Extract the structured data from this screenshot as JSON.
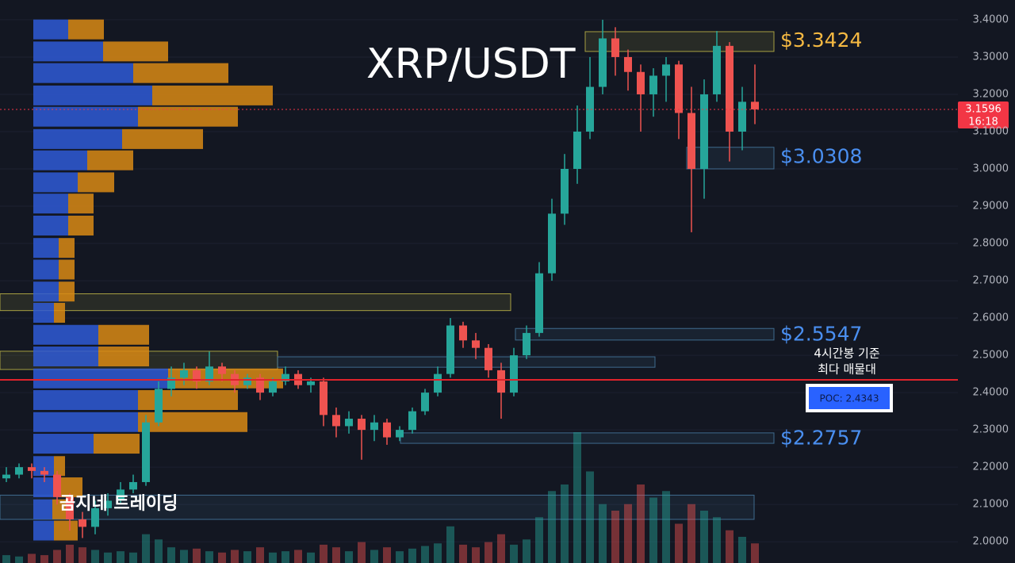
{
  "chart_data": {
    "type": "candlestick",
    "title": "XRP/USDT",
    "watermark": "곰지네 트레이딩",
    "ylim": [
      1.943,
      3.453
    ],
    "yticks": [
      {
        "value": 2.0,
        "label": "2.0000"
      },
      {
        "value": 2.1,
        "label": "2.1000"
      },
      {
        "value": 2.2,
        "label": "2.2000"
      },
      {
        "value": 2.3,
        "label": "2.3000"
      },
      {
        "value": 2.4,
        "label": "2.4000"
      },
      {
        "value": 2.5,
        "label": "2.5000"
      },
      {
        "value": 2.6,
        "label": "2.6000"
      },
      {
        "value": 2.7,
        "label": "2.7000"
      },
      {
        "value": 2.8,
        "label": "2.8000"
      },
      {
        "value": 2.9,
        "label": "2.9000"
      },
      {
        "value": 3.0,
        "label": "3.0000"
      },
      {
        "value": 3.1,
        "label": "3.1000"
      },
      {
        "value": 3.2,
        "label": "3.2000"
      },
      {
        "value": 3.3,
        "label": "3.3000"
      },
      {
        "value": 3.4,
        "label": "3.4000"
      }
    ],
    "up_color": "#26a69a",
    "down_color": "#ef5350",
    "open": [
      2.17,
      2.18,
      2.2,
      2.19,
      2.18,
      2.12,
      2.06,
      2.04,
      2.09,
      2.11,
      2.14,
      2.16,
      2.32,
      2.41,
      2.44,
      2.46,
      2.43,
      2.47,
      2.45,
      2.42,
      2.44,
      2.4,
      2.43,
      2.45,
      2.42,
      2.43,
      2.34,
      2.31,
      2.33,
      2.3,
      2.32,
      2.28,
      2.3,
      2.35,
      2.4,
      2.45,
      2.58,
      2.54,
      2.52,
      2.46,
      2.4,
      2.5,
      2.56,
      2.72,
      2.88,
      3.0,
      3.1,
      3.22,
      3.35,
      3.3,
      3.26,
      3.2,
      3.25,
      3.28,
      3.15,
      3.0,
      3.2,
      3.33,
      3.1,
      3.18
    ],
    "high": [
      2.2,
      2.21,
      2.21,
      2.2,
      2.19,
      2.13,
      2.08,
      2.11,
      2.13,
      2.16,
      2.18,
      2.34,
      2.43,
      2.47,
      2.48,
      2.47,
      2.51,
      2.48,
      2.46,
      2.45,
      2.45,
      2.44,
      2.47,
      2.46,
      2.44,
      2.44,
      2.36,
      2.35,
      2.34,
      2.34,
      2.33,
      2.31,
      2.36,
      2.41,
      2.47,
      2.6,
      2.59,
      2.56,
      2.53,
      2.48,
      2.52,
      2.58,
      2.75,
      2.92,
      3.04,
      3.17,
      3.3,
      3.4,
      3.38,
      3.32,
      3.28,
      3.27,
      3.3,
      3.29,
      3.22,
      3.24,
      3.37,
      3.34,
      3.22,
      3.28
    ],
    "low": [
      2.16,
      2.17,
      2.17,
      2.16,
      2.1,
      2.03,
      2.01,
      2.02,
      2.07,
      2.1,
      2.13,
      2.15,
      2.31,
      2.39,
      2.42,
      2.41,
      2.42,
      2.43,
      2.4,
      2.41,
      2.38,
      2.39,
      2.42,
      2.41,
      2.4,
      2.31,
      2.28,
      2.29,
      2.22,
      2.27,
      2.26,
      2.27,
      2.29,
      2.34,
      2.39,
      2.44,
      2.52,
      2.49,
      2.44,
      2.33,
      2.39,
      2.49,
      2.55,
      2.7,
      2.85,
      2.96,
      3.08,
      3.2,
      3.25,
      3.21,
      3.1,
      3.14,
      3.18,
      3.08,
      2.83,
      2.92,
      3.18,
      3.02,
      3.05,
      3.12
    ],
    "close": [
      2.18,
      2.2,
      2.19,
      2.18,
      2.12,
      2.06,
      2.04,
      2.09,
      2.11,
      2.14,
      2.16,
      2.32,
      2.41,
      2.44,
      2.46,
      2.43,
      2.47,
      2.45,
      2.42,
      2.44,
      2.4,
      2.43,
      2.45,
      2.42,
      2.43,
      2.34,
      2.31,
      2.33,
      2.3,
      2.32,
      2.28,
      2.3,
      2.35,
      2.4,
      2.45,
      2.58,
      2.54,
      2.52,
      2.46,
      2.4,
      2.5,
      2.56,
      2.72,
      2.88,
      3.0,
      3.1,
      3.22,
      3.35,
      3.3,
      3.26,
      3.2,
      3.25,
      3.28,
      3.15,
      3.0,
      3.2,
      3.33,
      3.1,
      3.18,
      3.1596
    ],
    "volume": [
      6,
      5,
      7,
      6,
      10,
      14,
      12,
      10,
      8,
      9,
      8,
      22,
      18,
      12,
      10,
      11,
      9,
      8,
      10,
      9,
      12,
      8,
      9,
      10,
      8,
      14,
      12,
      9,
      16,
      10,
      12,
      9,
      11,
      13,
      15,
      28,
      14,
      12,
      16,
      22,
      14,
      18,
      35,
      55,
      60,
      100,
      70,
      45,
      40,
      45,
      60,
      50,
      55,
      30,
      45,
      40,
      35,
      25,
      20,
      15
    ],
    "volume_profile": {
      "prices": [
        3.374,
        3.315,
        3.257,
        3.197,
        3.14,
        3.08,
        3.023,
        2.964,
        2.907,
        2.848,
        2.788,
        2.73,
        2.671,
        2.614,
        2.555,
        2.497,
        2.438,
        2.38,
        2.321,
        2.263,
        2.203,
        2.146,
        2.087,
        2.03
      ],
      "buy": [
        44,
        88,
        126,
        150,
        132,
        112,
        68,
        56,
        44,
        44,
        32,
        32,
        32,
        26,
        82,
        82,
        170,
        132,
        132,
        76,
        26,
        32,
        24,
        26
      ],
      "sell": [
        45,
        82,
        120,
        152,
        126,
        102,
        58,
        46,
        32,
        32,
        20,
        20,
        20,
        14,
        64,
        64,
        145,
        126,
        138,
        58,
        14,
        30,
        20,
        30
      ],
      "buy_color": "#2f5bd6",
      "sell_color": "#d98a14"
    },
    "zones": [
      {
        "low": 3.315,
        "high": 3.368,
        "color": "#c9c04a"
      },
      {
        "low": 3.0,
        "high": 3.058,
        "color": "#4a7ea8"
      },
      {
        "low": 2.541,
        "high": 2.572,
        "color": "#4a7ea8"
      },
      {
        "low": 2.264,
        "high": 2.292,
        "color": "#4a7ea8"
      },
      {
        "low": 2.62,
        "high": 2.665,
        "color": "#c9c04a"
      },
      {
        "low": 2.462,
        "high": 2.511,
        "color": "#c9c04a"
      },
      {
        "low": 2.468,
        "high": 2.496,
        "color": "#4a7ea8"
      },
      {
        "low": 2.06,
        "high": 2.125,
        "color": "#4a7ea8"
      }
    ],
    "levels": [
      {
        "value": 3.3424,
        "label": "$3.3424",
        "color": "#f5b942"
      },
      {
        "value": 3.0308,
        "label": "$3.0308",
        "color": "#4a8ff0"
      },
      {
        "value": 2.5547,
        "label": "$2.5547",
        "color": "#4a8ff0"
      },
      {
        "value": 2.2757,
        "label": "$2.2757",
        "color": "#4a8ff0"
      }
    ],
    "poc": {
      "value": 2.4343,
      "label": "POC: 2.4343",
      "note": [
        "4시간봉 기준",
        "최다 매물대"
      ],
      "color": "#e0232b"
    },
    "last_price": {
      "value": 3.1596,
      "label": "3.1596",
      "countdown": "16:18",
      "color": "#f23645"
    }
  }
}
